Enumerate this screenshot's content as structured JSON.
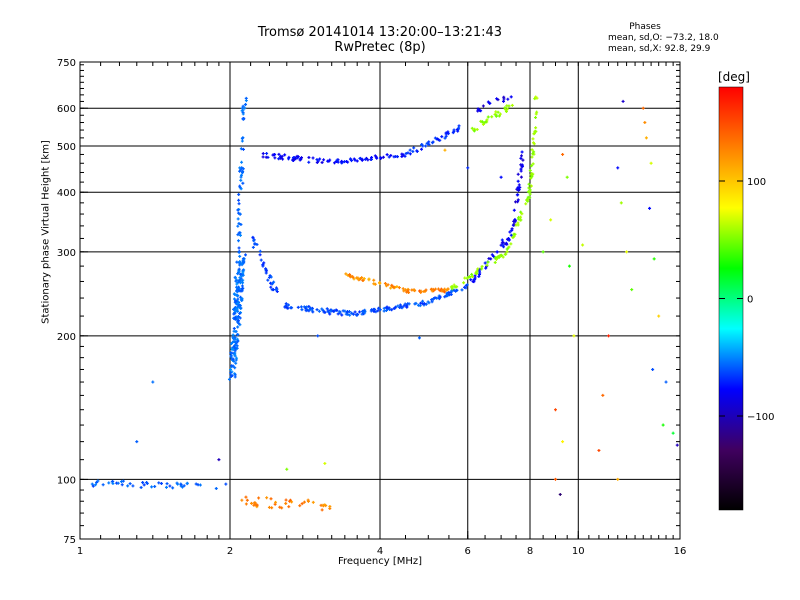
{
  "header": {
    "title_line1": "Tromsø 20141014 13:20:00–13:21:43",
    "title_line2": "RwPretec (8p)",
    "phases_heading": "Phases",
    "phases_line1": "mean, sd,O: −73.2, 18.0",
    "phases_line2": "mean, sd,X:  92.8, 29.9"
  },
  "colorbar": {
    "label": "[deg]",
    "ticks": [
      {
        "value": 100,
        "label": "100"
      },
      {
        "value": 0,
        "label": "0"
      },
      {
        "value": -100,
        "label": "−100"
      }
    ],
    "range": [
      -180,
      180
    ],
    "stops": [
      "#ff0000",
      "#ff7f00",
      "#ffff00",
      "#00ff00",
      "#00ffff",
      "#0000ff",
      "#400060",
      "#000000"
    ]
  },
  "chart_data": {
    "type": "scatter",
    "title": "Tromsø 20141014 13:20:00–13:21:43",
    "subtitle": "RwPretec (8p)",
    "xlabel": "Frequency [MHz]",
    "ylabel": "Stationary phase Virtual Height [km]",
    "xscale": "log",
    "yscale": "log",
    "xlim": [
      1,
      16
    ],
    "ylim": [
      75,
      750
    ],
    "xticks": [
      {
        "value": 1,
        "label": "1"
      },
      {
        "value": 2,
        "label": "2"
      },
      {
        "value": 4,
        "label": "4"
      },
      {
        "value": 6,
        "label": "6"
      },
      {
        "value": 8,
        "label": "8"
      },
      {
        "value": 10,
        "label": "10"
      },
      {
        "value": 16,
        "label": "16"
      }
    ],
    "yticks": [
      {
        "value": 75,
        "label": "75"
      },
      {
        "value": 100,
        "label": "100"
      },
      {
        "value": 200,
        "label": "200"
      },
      {
        "value": 300,
        "label": "300"
      },
      {
        "value": 400,
        "label": "400"
      },
      {
        "value": 500,
        "label": "500"
      },
      {
        "value": 600,
        "label": "600"
      },
      {
        "value": 750,
        "label": "750"
      }
    ],
    "grid": true,
    "grid_x": [
      2,
      4,
      6,
      8,
      10
    ],
    "grid_y": [
      100,
      200,
      300,
      400,
      500,
      600
    ],
    "color_variable": "phase [deg]",
    "segments": [
      {
        "x_from": 1.0,
        "x_to": 2.0,
        "y_from": 98,
        "y_to": 97,
        "jitter": 0.015,
        "count": 45,
        "phase": -85
      },
      {
        "x_from": 2.02,
        "x_to": 2.12,
        "y_from": 165,
        "y_to": 290,
        "jitter": 0.03,
        "count": 170,
        "phase": -80
      },
      {
        "x_from": 2.05,
        "x_to": 2.14,
        "y_from": 220,
        "y_to": 640,
        "jitter": 0.02,
        "count": 75,
        "phase": -82
      },
      {
        "x_from": 2.2,
        "x_to": 2.5,
        "y_from": 330,
        "y_to": 240,
        "jitter": 0.02,
        "count": 35,
        "phase": -92
      },
      {
        "x_from": 2.5,
        "x_to": 3.5,
        "y_from": 232,
        "y_to": 222,
        "jitter": 0.012,
        "count": 60,
        "phase": -90
      },
      {
        "x_from": 3.5,
        "x_to": 5.0,
        "y_from": 222,
        "y_to": 235,
        "jitter": 0.01,
        "count": 60,
        "phase": -90
      },
      {
        "x_from": 5.0,
        "x_to": 6.0,
        "y_from": 235,
        "y_to": 255,
        "jitter": 0.01,
        "count": 35,
        "phase": -88
      },
      {
        "x_from": 6.0,
        "x_to": 7.4,
        "y_from": 255,
        "y_to": 330,
        "jitter": 0.015,
        "count": 40,
        "phase": -112
      },
      {
        "x_from": 7.4,
        "x_to": 7.75,
        "y_from": 330,
        "y_to": 500,
        "jitter": 0.015,
        "count": 35,
        "phase": -120
      },
      {
        "x_from": 3.4,
        "x_to": 4.6,
        "y_from": 268,
        "y_to": 248,
        "jitter": 0.01,
        "count": 45,
        "phase": 138
      },
      {
        "x_from": 4.6,
        "x_to": 5.5,
        "y_from": 248,
        "y_to": 249,
        "jitter": 0.008,
        "count": 30,
        "phase": 145
      },
      {
        "x_from": 5.5,
        "x_to": 7.2,
        "y_from": 249,
        "y_to": 300,
        "jitter": 0.012,
        "count": 40,
        "phase": 75
      },
      {
        "x_from": 7.2,
        "x_to": 8.0,
        "y_from": 300,
        "y_to": 400,
        "jitter": 0.012,
        "count": 30,
        "phase": 75
      },
      {
        "x_from": 8.0,
        "x_to": 8.25,
        "y_from": 400,
        "y_to": 640,
        "jitter": 0.015,
        "count": 35,
        "phase": 80
      },
      {
        "x_from": 2.3,
        "x_to": 3.2,
        "y_from": 480,
        "y_to": 462,
        "jitter": 0.012,
        "count": 45,
        "phase": -112
      },
      {
        "x_from": 3.2,
        "x_to": 4.5,
        "y_from": 462,
        "y_to": 480,
        "jitter": 0.01,
        "count": 45,
        "phase": -110
      },
      {
        "x_from": 4.5,
        "x_to": 5.8,
        "y_from": 480,
        "y_to": 545,
        "jitter": 0.012,
        "count": 40,
        "phase": -100
      },
      {
        "x_from": 6.1,
        "x_to": 7.4,
        "y_from": 540,
        "y_to": 610,
        "jitter": 0.015,
        "count": 30,
        "phase": 75
      },
      {
        "x_from": 2.1,
        "x_to": 3.2,
        "y_from": 90,
        "y_to": 88,
        "jitter": 0.025,
        "count": 40,
        "phase": 142
      },
      {
        "x_from": 6.2,
        "x_to": 7.3,
        "y_from": 590,
        "y_to": 640,
        "jitter": 0.02,
        "count": 15,
        "phase": -118
      }
    ],
    "scattered_points": [
      [
        9.0,
        100,
        155
      ],
      [
        9.2,
        93,
        -150
      ],
      [
        9.3,
        480,
        150
      ],
      [
        9.5,
        430,
        70
      ],
      [
        9.6,
        280,
        40
      ],
      [
        9.8,
        200,
        100
      ],
      [
        10.2,
        310,
        90
      ],
      [
        9.0,
        140,
        160
      ],
      [
        9.3,
        120,
        110
      ],
      [
        12.3,
        620,
        -125
      ],
      [
        12.0,
        450,
        -110
      ],
      [
        12.2,
        380,
        80
      ],
      [
        12.5,
        300,
        100
      ],
      [
        12.8,
        250,
        60
      ],
      [
        13.5,
        600,
        150
      ],
      [
        13.6,
        560,
        140
      ],
      [
        13.7,
        520,
        130
      ],
      [
        14.0,
        460,
        95
      ],
      [
        13.9,
        370,
        -110
      ],
      [
        14.2,
        290,
        45
      ],
      [
        14.5,
        220,
        120
      ],
      [
        14.1,
        170,
        -90
      ],
      [
        15.0,
        160,
        -85
      ],
      [
        14.8,
        130,
        40
      ],
      [
        15.5,
        125,
        20
      ],
      [
        15.8,
        118,
        -130
      ],
      [
        11.5,
        200,
        170
      ],
      [
        11.2,
        150,
        150
      ],
      [
        11.0,
        115,
        160
      ],
      [
        12.0,
        100,
        130
      ],
      [
        8.8,
        350,
        95
      ],
      [
        8.5,
        300,
        60
      ],
      [
        4.8,
        198,
        -85
      ],
      [
        1.4,
        160,
        -80
      ],
      [
        1.3,
        120,
        -85
      ],
      [
        1.9,
        110,
        -130
      ],
      [
        2.6,
        105,
        70
      ],
      [
        3.1,
        108,
        95
      ],
      [
        3.0,
        200,
        -90
      ],
      [
        6.0,
        450,
        -100
      ],
      [
        5.4,
        490,
        130
      ],
      [
        7.0,
        430,
        -110
      ]
    ]
  }
}
